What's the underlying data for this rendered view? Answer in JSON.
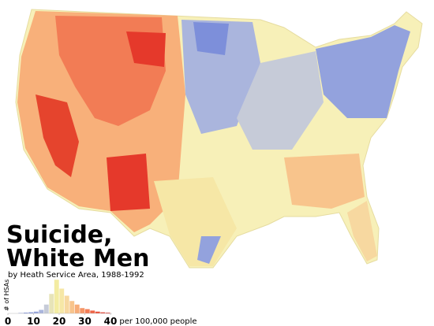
{
  "header": {
    "title_lines": [
      "Suicide,",
      "White Men"
    ],
    "subtitle": "by Heath Service Area, 1988-1992"
  },
  "chart_data": {
    "type": "histogram",
    "y_label": "# of HSAs",
    "x_unit_label": "per 100,000 people",
    "bins": [
      4,
      6,
      8,
      10,
      12,
      14,
      16,
      18,
      20,
      22,
      24,
      26,
      28,
      30,
      32,
      34,
      36,
      38,
      40
    ],
    "values": [
      1,
      2,
      3,
      5,
      10,
      25,
      55,
      95,
      70,
      50,
      35,
      25,
      15,
      12,
      8,
      5,
      3,
      2
    ],
    "colors": [
      "#5a6ed0",
      "#6a7fd6",
      "#7d8fda",
      "#93a2dd",
      "#aab5dd",
      "#c6cbd8",
      "#e7e4b8",
      "#f3eca2",
      "#f6e7a6",
      "#f7d8a0",
      "#f8c48c",
      "#f7ac78",
      "#f59566",
      "#f27c55",
      "#ee6445",
      "#ea4d36",
      "#e5392b",
      "#dd2a22"
    ],
    "xlim": [
      0,
      40
    ],
    "xticks": [
      0,
      10,
      20,
      30,
      40
    ],
    "ylim": [
      0,
      100
    ]
  }
}
